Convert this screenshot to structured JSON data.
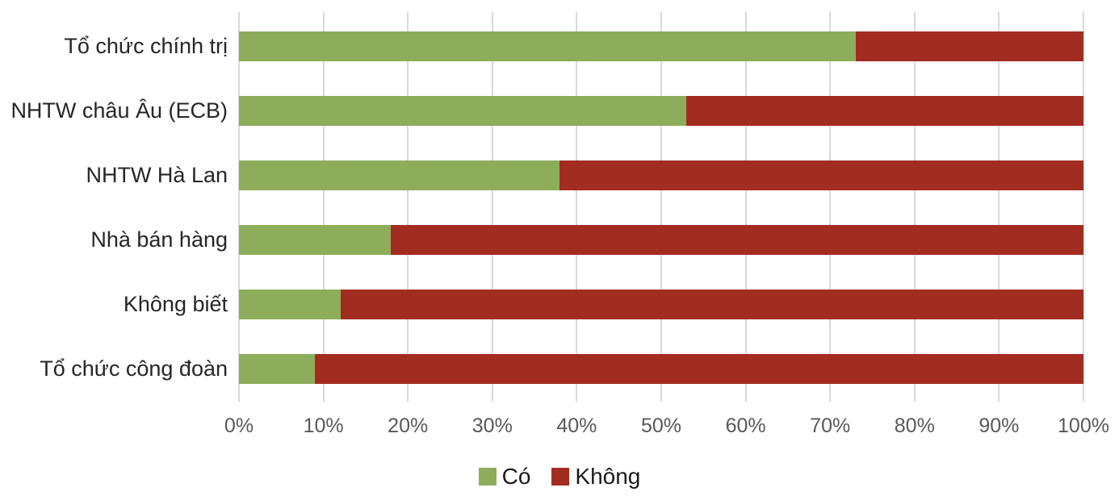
{
  "chart_data": {
    "type": "bar",
    "orientation": "horizontal-stacked",
    "title": "",
    "categories": [
      "Tổ chức chính trị",
      "NHTW châu Âu (ECB)",
      "NHTW Hà Lan",
      "Nhà bán hàng",
      "Không biết",
      "Tổ chức công đoàn"
    ],
    "series": [
      {
        "name": "Có",
        "color": "#8dad5a",
        "values": [
          73,
          53,
          38,
          18,
          12,
          9
        ]
      },
      {
        "name": "Không",
        "color": "#a22c20",
        "values": [
          27,
          47,
          62,
          82,
          88,
          91
        ]
      }
    ],
    "xlabel": "",
    "ylabel": "",
    "xlim": [
      0,
      100
    ],
    "x_tick_step": 10,
    "x_ticks": [
      "0%",
      "10%",
      "20%",
      "30%",
      "40%",
      "50%",
      "60%",
      "70%",
      "80%",
      "90%",
      "100%"
    ],
    "grid": "vertical",
    "gridline_color": "#d9d9d9",
    "axis_label_color": "#595959",
    "category_label_color": "#262626",
    "legend_position": "bottom-center"
  }
}
